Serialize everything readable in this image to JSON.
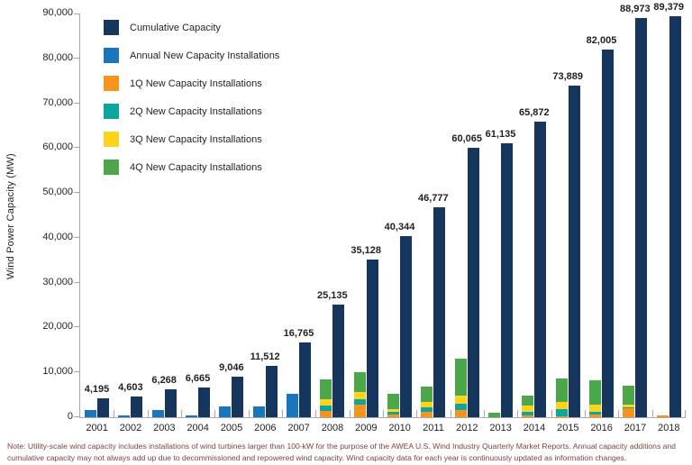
{
  "chart_data": {
    "type": "bar",
    "ylabel": "Wind Power Capacity (MW)",
    "ylim": [
      0,
      90000
    ],
    "ytick_step": 10000,
    "ytick_labels": [
      "0",
      "10,000",
      "20,000",
      "30,000",
      "40,000",
      "50,000",
      "60,000",
      "70,000",
      "80,000",
      "90,000"
    ],
    "grid": false,
    "legend_position": "top-left",
    "categories": [
      "2001",
      "2002",
      "2003",
      "2004",
      "2005",
      "2006",
      "2007",
      "2008",
      "2009",
      "2010",
      "2011",
      "2012",
      "2013",
      "2014",
      "2015",
      "2016",
      "2017",
      "2018"
    ],
    "series": [
      {
        "name": "Cumulative Capacity",
        "color": "#17365d",
        "values": [
          4195,
          4603,
          6268,
          6665,
          9046,
          11512,
          16765,
          25135,
          35128,
          40344,
          46777,
          60065,
          61135,
          65872,
          73889,
          82005,
          88973,
          89379
        ]
      },
      {
        "name": "Annual New Capacity Installations",
        "color": "#1b75bc",
        "values": [
          1697,
          446,
          1670,
          372,
          2431,
          2454,
          5253,
          0,
          0,
          0,
          0,
          0,
          0,
          0,
          0,
          0,
          0,
          0
        ]
      },
      {
        "name": "1Q New Capacity Installations",
        "color": "#f7941e",
        "values": [
          0,
          0,
          0,
          0,
          0,
          0,
          0,
          1400,
          2826,
          539,
          1118,
          1695,
          0,
          433,
          180,
          520,
          2000,
          406
        ]
      },
      {
        "name": "2Q New Capacity Installations",
        "color": "#0ca69c",
        "values": [
          0,
          0,
          0,
          0,
          0,
          0,
          0,
          1193,
          1210,
          700,
          1033,
          1238,
          0,
          835,
          1661,
          593,
          167,
          0
        ]
      },
      {
        "name": "3Q New Capacity Installations",
        "color": "#fdd41c",
        "values": [
          0,
          0,
          0,
          0,
          0,
          0,
          0,
          1389,
          1649,
          670,
          1204,
          1833,
          70,
          1254,
          1602,
          1725,
          673,
          0
        ]
      },
      {
        "name": "4Q New Capacity Installations",
        "color": "#4ca74a",
        "values": [
          0,
          0,
          0,
          0,
          0,
          0,
          0,
          4376,
          4325,
          3307,
          3465,
          8365,
          1015,
          2332,
          5155,
          5365,
          4177,
          0
        ]
      }
    ],
    "cumulative_labels": [
      "4,195",
      "4,603",
      "6,268",
      "6,665",
      "9,046",
      "11,512",
      "16,765",
      "25,135",
      "35,128",
      "40,344",
      "46,777",
      "60,065",
      "61,135",
      "65,872",
      "73,889",
      "82,005",
      "88,973",
      "89,379"
    ]
  },
  "note": {
    "text": "Note: Utility-scale wind capacity includes installations of wind turbines larger than 100-kW for the purpose of the AWEA U.S. Wind Industry Quarterly Market Reports. Annual capacity additions and cumulative capacity may not always add up due to decommissioned and repowered wind capacity. Wind capacity data for each year is continuously updated as information changes."
  }
}
